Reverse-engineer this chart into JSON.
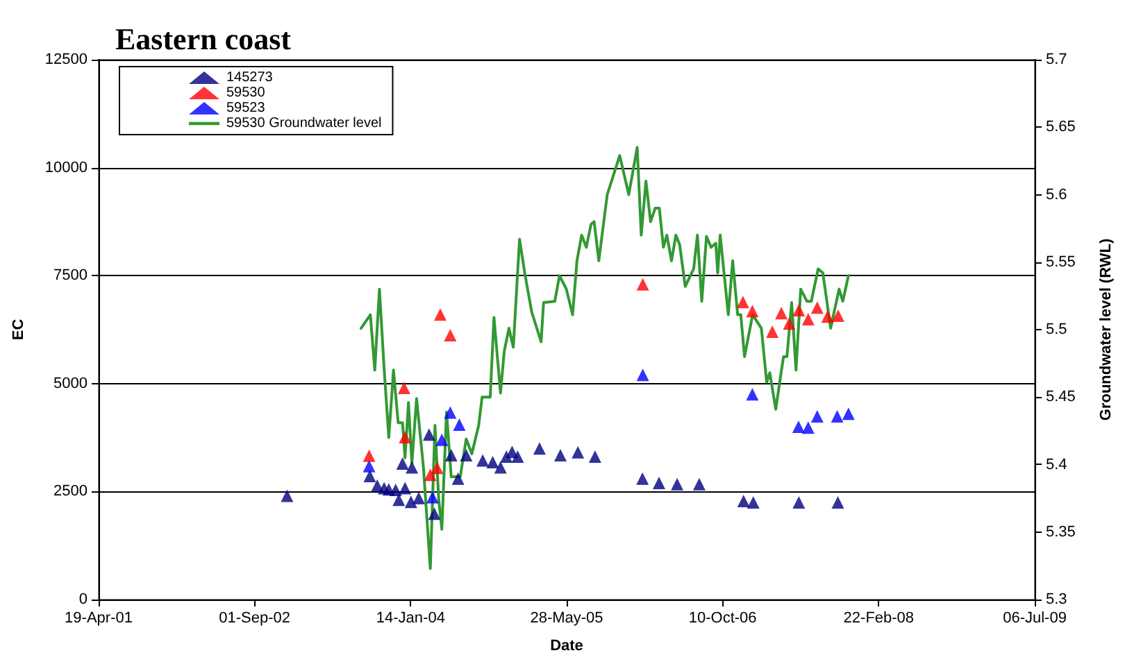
{
  "chart_data": {
    "type": "scatter",
    "title": "Eastern coast",
    "xlabel": "Date",
    "ylabel": "EC",
    "y2label": "Groundwater level (RWL)",
    "xlim": [
      "2001-04-19",
      "2009-07-06"
    ],
    "xticks": [
      {
        "value": "2001-04-19",
        "label": "19-Apr-01"
      },
      {
        "value": "2002-09-01",
        "label": "01-Sep-02"
      },
      {
        "value": "2004-01-14",
        "label": "14-Jan-04"
      },
      {
        "value": "2005-05-28",
        "label": "28-May-05"
      },
      {
        "value": "2006-10-10",
        "label": "10-Oct-06"
      },
      {
        "value": "2008-02-22",
        "label": "22-Feb-08"
      },
      {
        "value": "2009-07-06",
        "label": "06-Jul-09"
      }
    ],
    "ylim": [
      0,
      12500
    ],
    "yticks": [
      0,
      2500,
      5000,
      7500,
      10000,
      12500
    ],
    "y2lim": [
      5.3,
      5.7
    ],
    "y2ticks": [
      5.3,
      5.35,
      5.4,
      5.45,
      5.5,
      5.55,
      5.6,
      5.65,
      5.7
    ],
    "grid": "y",
    "legend": "top left",
    "marker": "triangle",
    "series": [
      {
        "name": "145273",
        "color": "#000080",
        "x": [
          "2002-12-14",
          "2003-09-05",
          "2003-09-29",
          "2003-10-21",
          "2003-11-05",
          "2003-11-27",
          "2003-12-07",
          "2003-12-19",
          "2003-12-27",
          "2004-01-15",
          "2004-01-18",
          "2004-02-09",
          "2004-03-13",
          "2004-03-30",
          "2004-05-23",
          "2004-06-14",
          "2004-07-10",
          "2004-09-01",
          "2004-10-03",
          "2004-10-28",
          "2004-11-16",
          "2004-12-04",
          "2004-12-22",
          "2005-03-02",
          "2005-05-08",
          "2005-07-03",
          "2005-08-27",
          "2006-01-26",
          "2006-03-20",
          "2006-05-17",
          "2006-07-27",
          "2006-12-16",
          "2007-01-16",
          "2007-06-11",
          "2007-10-14"
        ],
        "values": [
          2400,
          2860,
          2640,
          2580,
          2550,
          2540,
          2310,
          3150,
          2580,
          2260,
          3060,
          2350,
          3820,
          1990,
          3340,
          2800,
          3340,
          3220,
          3180,
          3060,
          3310,
          3420,
          3310,
          3500,
          3340,
          3410,
          3310,
          2800,
          2700,
          2670,
          2670,
          2280,
          2250,
          2250,
          2250
        ]
      },
      {
        "name": "59530",
        "color": "#ff0000",
        "x": [
          "2003-09-03",
          "2003-12-24",
          "2003-12-27",
          "2004-03-17",
          "2004-04-08",
          "2004-04-18",
          "2004-05-20",
          "2006-01-27",
          "2006-12-14",
          "2007-01-13",
          "2007-03-18",
          "2007-04-16",
          "2007-05-11",
          "2007-06-11",
          "2007-07-11",
          "2007-08-09",
          "2007-09-11",
          "2007-10-15"
        ],
        "values": [
          3330,
          4900,
          3760,
          2890,
          3050,
          6600,
          6120,
          7300,
          6890,
          6680,
          6200,
          6630,
          6390,
          6700,
          6490,
          6760,
          6550,
          6570
        ]
      },
      {
        "name": "59523",
        "color": "#0000ff",
        "x": [
          "2003-09-03",
          "2004-03-24",
          "2004-04-23",
          "2004-05-20",
          "2004-06-18",
          "2006-01-27",
          "2007-01-13",
          "2007-06-10",
          "2007-07-11",
          "2007-08-09",
          "2007-10-12",
          "2007-11-17"
        ],
        "values": [
          3090,
          2370,
          3700,
          4330,
          4050,
          5200,
          4750,
          4000,
          3980,
          4240,
          4240,
          4300
        ]
      },
      {
        "name": "59530 Groundwater level",
        "type": "line",
        "axis": "y2",
        "marker": "none",
        "color": "#339933",
        "x": [
          "2003-08-08",
          "2003-09-07",
          "2003-09-21",
          "2003-10-06",
          "2003-10-21",
          "2003-11-05",
          "2003-11-20",
          "2003-12-05",
          "2003-12-19",
          "2003-12-27",
          "2004-01-07",
          "2004-01-18",
          "2004-02-02",
          "2004-02-24",
          "2004-03-17",
          "2004-04-01",
          "2004-04-13",
          "2004-04-23",
          "2004-05-08",
          "2004-05-23",
          "2004-06-21",
          "2004-07-10",
          "2004-07-28",
          "2004-08-19",
          "2004-08-30",
          "2004-09-25",
          "2004-10-07",
          "2004-10-28",
          "2004-11-09",
          "2004-11-24",
          "2004-12-08",
          "2004-12-28",
          "2005-01-15",
          "2005-02-05",
          "2005-03-07",
          "2005-03-15",
          "2005-04-20",
          "2005-05-05",
          "2005-05-27",
          "2005-06-16",
          "2005-06-30",
          "2005-07-15",
          "2005-07-30",
          "2005-08-14",
          "2005-08-24",
          "2005-09-08",
          "2005-10-05",
          "2005-11-14",
          "2005-12-13",
          "2006-01-09",
          "2006-01-22",
          "2006-02-06",
          "2006-02-21",
          "2006-03-08",
          "2006-03-21",
          "2006-04-03",
          "2006-04-14",
          "2006-04-29",
          "2006-05-13",
          "2006-05-25",
          "2006-06-12",
          "2006-07-09",
          "2006-07-21",
          "2006-08-04",
          "2006-08-19",
          "2006-09-03",
          "2006-09-18",
          "2006-09-24",
          "2006-10-02",
          "2006-10-28",
          "2006-11-11",
          "2006-11-27",
          "2006-12-07",
          "2006-12-19",
          "2007-01-14",
          "2007-02-11",
          "2007-02-28",
          "2007-03-10",
          "2007-03-29",
          "2007-04-23",
          "2007-05-04",
          "2007-05-19",
          "2007-06-02",
          "2007-06-17",
          "2007-07-07",
          "2007-07-21",
          "2007-08-12",
          "2007-08-27",
          "2007-09-21",
          "2007-10-18",
          "2007-10-30",
          "2007-11-17"
        ],
        "values": [
          5.501,
          5.511,
          5.47,
          5.53,
          5.471,
          5.42,
          5.47,
          5.431,
          5.431,
          5.405,
          5.446,
          5.401,
          5.449,
          5.398,
          5.323,
          5.429,
          5.374,
          5.352,
          5.439,
          5.391,
          5.391,
          5.419,
          5.408,
          5.429,
          5.45,
          5.45,
          5.509,
          5.453,
          5.484,
          5.501,
          5.487,
          5.567,
          5.54,
          5.513,
          5.491,
          5.52,
          5.521,
          5.54,
          5.53,
          5.511,
          5.551,
          5.57,
          5.561,
          5.578,
          5.58,
          5.551,
          5.6,
          5.629,
          5.6,
          5.635,
          5.57,
          5.61,
          5.58,
          5.59,
          5.59,
          5.561,
          5.57,
          5.551,
          5.57,
          5.563,
          5.532,
          5.545,
          5.57,
          5.521,
          5.569,
          5.561,
          5.564,
          5.542,
          5.57,
          5.511,
          5.551,
          5.511,
          5.511,
          5.48,
          5.511,
          5.501,
          5.461,
          5.468,
          5.441,
          5.48,
          5.48,
          5.52,
          5.47,
          5.53,
          5.521,
          5.521,
          5.545,
          5.542,
          5.501,
          5.53,
          5.521,
          5.54
        ]
      }
    ]
  }
}
